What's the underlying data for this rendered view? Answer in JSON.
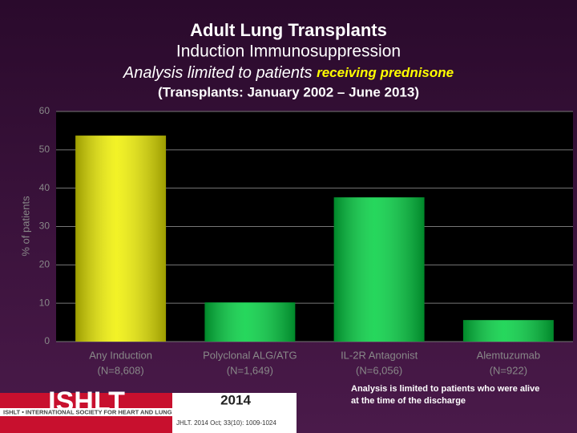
{
  "chart_data": {
    "type": "bar",
    "title": "Adult Lung Transplants",
    "subtitle": "Induction Immunosuppression",
    "subtitle_2": "Analysis limited to patients",
    "subtitle_2_highlight": "receiving prednisone",
    "period": "(Transplants: January 2002 – June 2013)",
    "y_label": "% of patients",
    "categories": [
      "Any Induction",
      "Polyclonal ALG/ATG",
      "IL-2R Antagonist",
      "Alemtuzumab"
    ],
    "category_counts": [
      "(N=8,608)",
      "(N=1,649)",
      "(N=6,056)",
      "(N=922)"
    ],
    "values": [
      53.7,
      10.2,
      37.6,
      5.6
    ],
    "colors": [
      "#f0f000",
      "#00d040",
      "#00d040",
      "#00d040"
    ],
    "ylim": [
      0,
      60
    ],
    "yticks": [
      0,
      10,
      20,
      30,
      40,
      50,
      60
    ],
    "grid": true,
    "note": "Analysis is limited to patients who were alive at the time of the discharge"
  },
  "footer": {
    "logo": "ISHLT",
    "society": "ISHLT • INTERNATIONAL SOCIETY FOR HEART AND LUNG TRANSPLANTATION",
    "year": "2014",
    "citation": "JHLT. 2014 Oct; 33(10): 1009-1024"
  }
}
